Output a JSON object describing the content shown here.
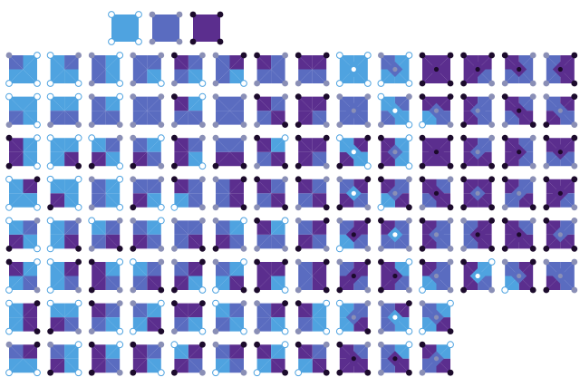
{
  "legend": {
    "colors": [
      "#4fa3e0",
      "#5a6cc0",
      "#5b2e8e"
    ]
  },
  "dot_colors": [
    "#ffffff",
    "#8a8fb6",
    "#1c0b2c"
  ],
  "dot_stroke": "#4fa3e0",
  "rows": [
    [
      "1000",
      "0100",
      "1001",
      "1101",
      "2101",
      "1201",
      "2111",
      "2211",
      "00000",
      "10001",
      "22222",
      "22122",
      "21112",
      "12212"
    ],
    [
      "0001",
      "0011",
      "1011",
      "1111",
      "2011",
      "1111",
      "2121",
      "2212",
      "11111",
      "01010",
      "22101",
      "21121",
      "21212",
      "12121"
    ],
    [
      "2002",
      "0020",
      "0102",
      "1012",
      "2102",
      "1122",
      "2021",
      "2212",
      "02020",
      "20021",
      "22222",
      "21221",
      "21122",
      "22112"
    ],
    [
      "0200",
      "0002",
      "1001",
      "1102",
      "2110",
      "1221",
      "2121",
      "2121",
      "12120",
      "21201",
      "21212",
      "22221",
      "21211",
      "22122"
    ],
    [
      "0102",
      "0120",
      "0121",
      "1012",
      "1121",
      "1012",
      "2011",
      "1212",
      "12102",
      "21110",
      "21121",
      "12212",
      "21222",
      "21221"
    ],
    [
      "2010",
      "0210",
      "2012",
      "0121",
      "1202",
      "1020",
      "2202",
      "1221",
      "12122",
      "20122",
      "21101",
      "20120",
      "12201",
      "11121"
    ],
    [
      "0220",
      "0012",
      "2101",
      "1020",
      "2201",
      "0101",
      "1201",
      "2001",
      "01201",
      "12010",
      "10201"
    ],
    [
      "1200",
      "1002",
      "2012",
      "2102",
      "0212",
      "1210",
      "2020",
      "2120",
      "21222",
      "10212",
      "20211"
    ]
  ]
}
